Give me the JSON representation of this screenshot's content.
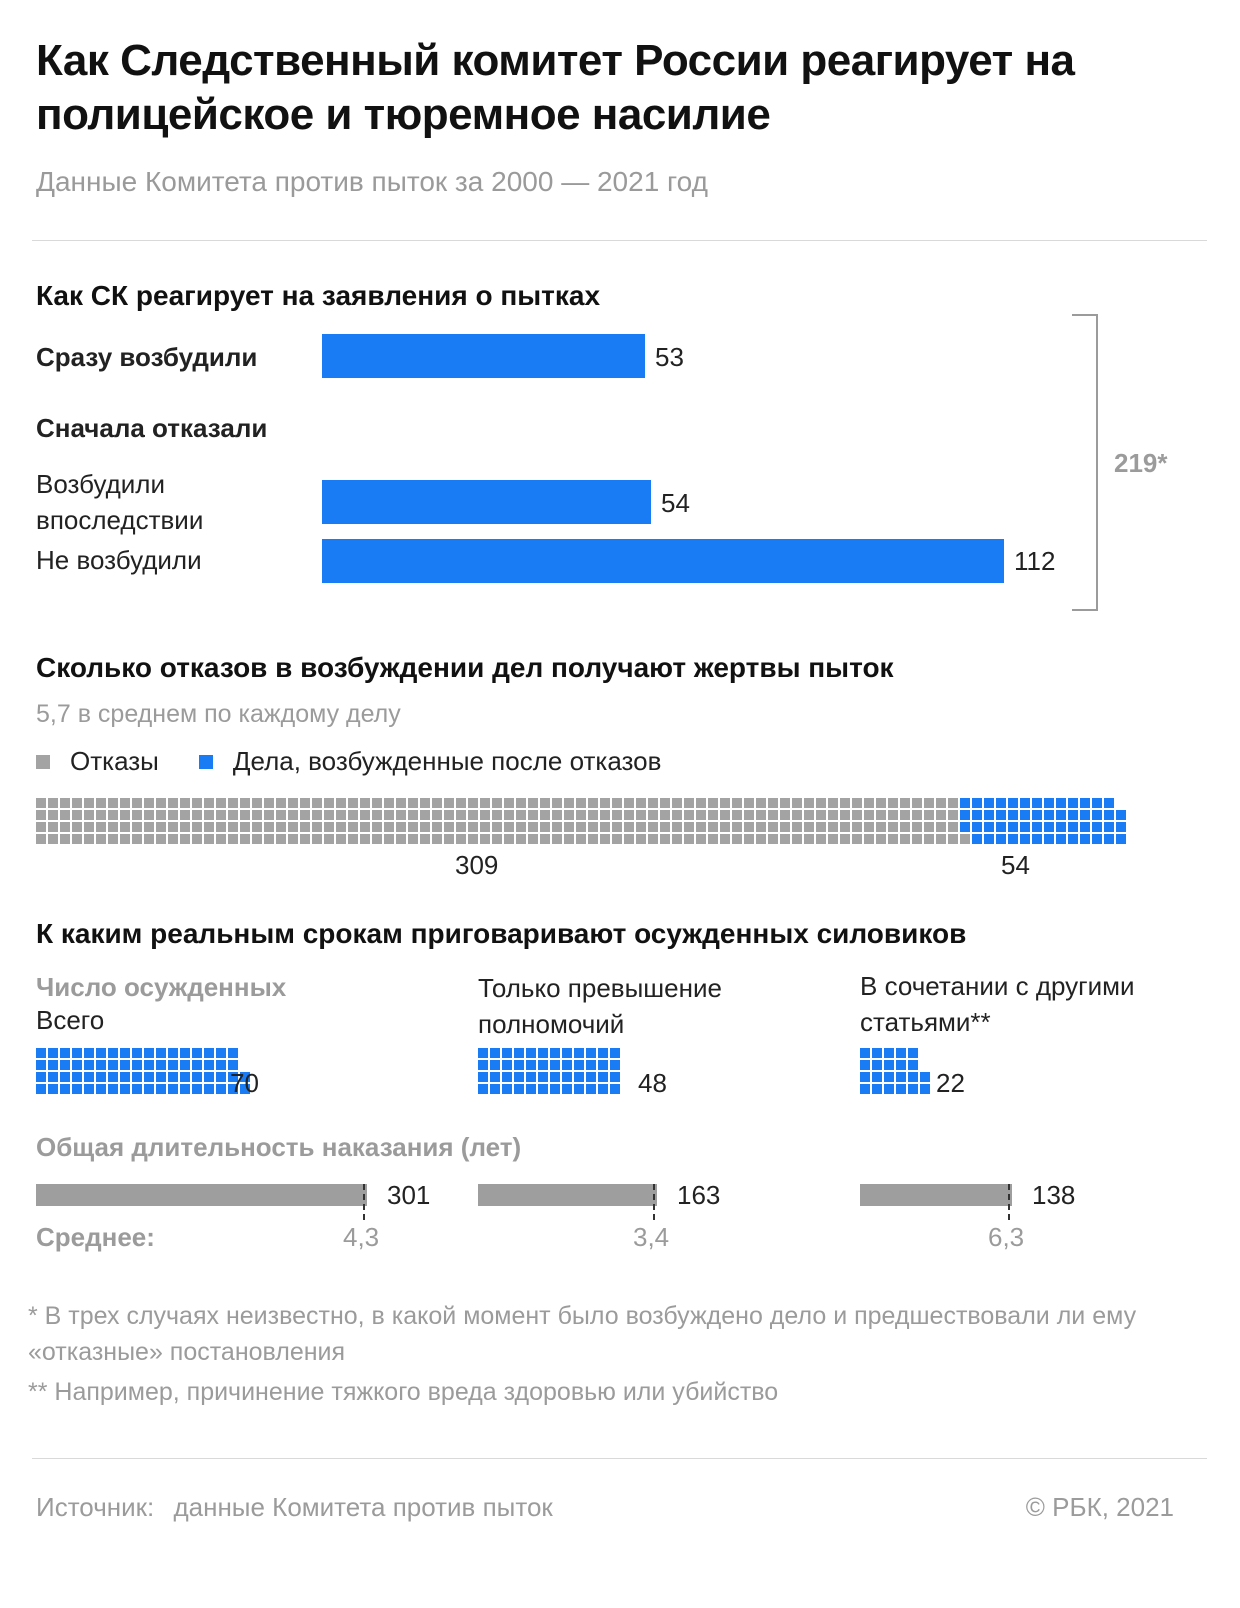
{
  "title": "Как Следственный комитет России реагирует на полицейское и тюремное насилие",
  "subtitle": "Данные Комитета против пыток за 2000 — 2021 год",
  "section1": {
    "title": "Как СК реагирует на заявления о пытках",
    "group_label": "Сначала отказали",
    "bracket_total": "219*",
    "bars": [
      {
        "label": "Сразу возбудили",
        "value": 53
      },
      {
        "label": "Возбудили впоследствии",
        "value": 54
      },
      {
        "label": "Не возбудили",
        "value": 112
      }
    ]
  },
  "section2": {
    "title": "Сколько отказов в возбуждении дел получают жертвы пыток",
    "note": "5,7 в среднем по каждому делу",
    "legend_refusals": "Отказы",
    "legend_cases": "Дела, возбужденные после отказов",
    "refusals": 309,
    "cases": 54
  },
  "section3": {
    "title": "К каким реальным срокам приговаривают осужденных силовиков",
    "convicted_label": "Число осужденных",
    "duration_label": "Общая длительность наказания (лет)",
    "average_label": "Среднее:",
    "groups": [
      {
        "name": "Всего",
        "convicted": 70,
        "years": 301,
        "average": "4,3"
      },
      {
        "name": "Только превышение полномочий",
        "convicted": 48,
        "years": 163,
        "average": "3,4"
      },
      {
        "name": "В сочетании с другими статьями**",
        "convicted": 22,
        "years": 138,
        "average": "6,3"
      }
    ]
  },
  "footnote1": "* В трех случаях неизвестно, в какой момент было возбуждено дело и предшествовали ли ему «отказные» постановления",
  "footnote2": "** Например, причинение тяжкого вреда здоровью или убийство",
  "source_label": "Источник:",
  "source_text": "данные Комитета против пыток",
  "copyright": "© РБК, 2021",
  "colors": {
    "accent": "#1a7cf5",
    "gray": "#9e9e9e"
  },
  "chart_data": [
    {
      "type": "bar",
      "title": "Как СК реагирует на заявления о пытках",
      "categories": [
        "Сразу возбудили",
        "Возбудили впоследствии",
        "Не возбудили"
      ],
      "values": [
        53,
        54,
        112
      ],
      "total": 219
    },
    {
      "type": "waffle",
      "title": "Сколько отказов в возбуждении дел получают жертвы пыток",
      "series": [
        {
          "name": "Отказы",
          "values": [
            309
          ]
        },
        {
          "name": "Дела, возбужденные после отказов",
          "values": [
            54
          ]
        }
      ]
    },
    {
      "type": "bar",
      "title": "К каким реальным срокам приговаривают осужденных силовиков",
      "categories": [
        "Всего",
        "Только превышение полномочий",
        "В сочетании с другими статьями**"
      ],
      "series": [
        {
          "name": "Число осужденных",
          "values": [
            70,
            48,
            22
          ]
        },
        {
          "name": "Общая длительность наказания (лет)",
          "values": [
            301,
            163,
            138
          ]
        },
        {
          "name": "Среднее:",
          "values": [
            4.3,
            3.4,
            6.3
          ]
        }
      ]
    }
  ]
}
